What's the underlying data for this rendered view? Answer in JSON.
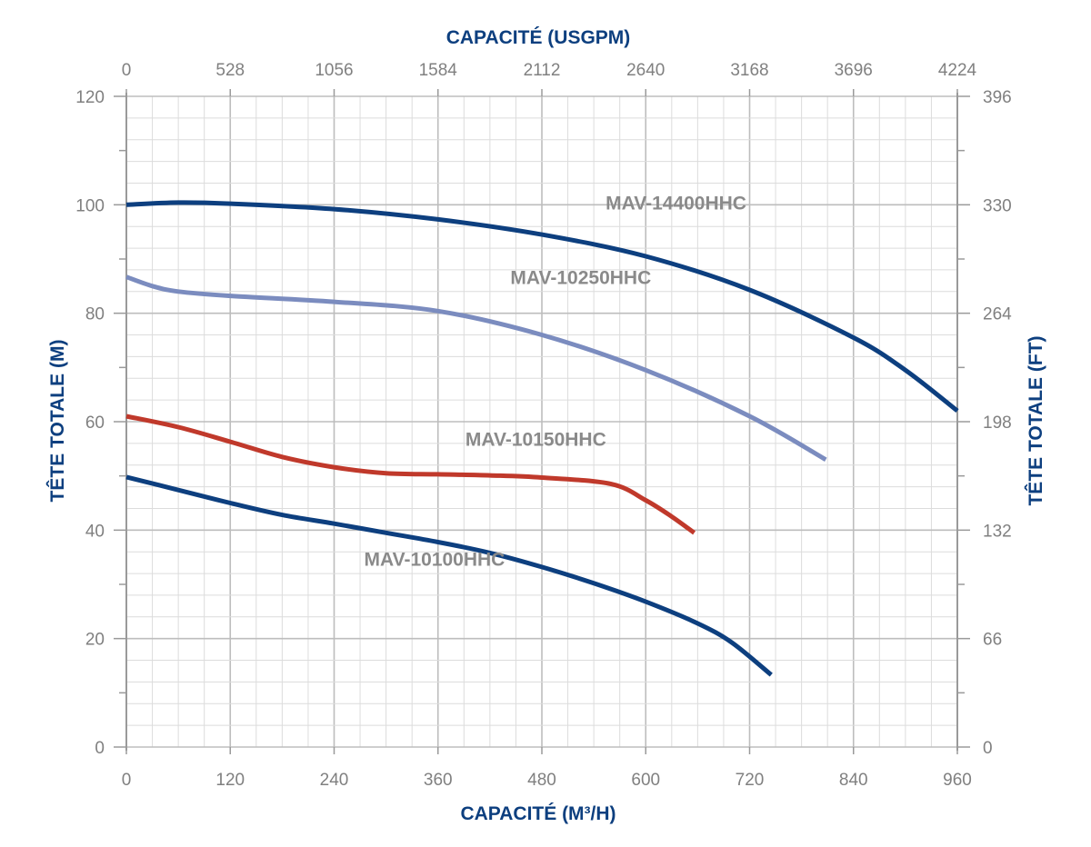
{
  "chart_data": {
    "type": "line",
    "title": "",
    "x_bottom": {
      "label": "CAPACITÉ (M³/H)",
      "range": [
        0,
        960
      ],
      "ticks": [
        "0",
        "120",
        "240",
        "360",
        "480",
        "600",
        "720",
        "840",
        "960"
      ]
    },
    "x_top": {
      "label": "CAPACITÉ (USGPM)",
      "range": [
        0,
        4224
      ],
      "ticks": [
        "0",
        "528",
        "1056",
        "1584",
        "2112",
        "2640",
        "3168",
        "3696",
        "4224"
      ]
    },
    "y_left": {
      "label": "TÊTE TOTALE (M)",
      "range": [
        0,
        120
      ],
      "ticks": [
        "0",
        "20",
        "40",
        "60",
        "80",
        "100",
        "120"
      ]
    },
    "y_right": {
      "label": "TÊTE TOTALE (FT)",
      "range": [
        0,
        396
      ],
      "ticks": [
        "0",
        "66",
        "132",
        "198",
        "264",
        "330",
        "396"
      ]
    },
    "grid": true,
    "series": [
      {
        "name": "MAV-14400HHC",
        "color": "#0d3f7f",
        "points": [
          [
            0,
            100
          ],
          [
            60,
            100.4
          ],
          [
            120,
            100.2
          ],
          [
            240,
            99.2
          ],
          [
            360,
            97.3
          ],
          [
            480,
            94.5
          ],
          [
            600,
            90.5
          ],
          [
            720,
            84.3
          ],
          [
            840,
            75.5
          ],
          [
            900,
            69.5
          ],
          [
            960,
            62
          ]
        ]
      },
      {
        "name": "MAV-10250HHC",
        "color": "#7b8cbf",
        "points": [
          [
            0,
            86.7
          ],
          [
            30,
            85
          ],
          [
            60,
            84
          ],
          [
            120,
            83.2
          ],
          [
            240,
            82.1
          ],
          [
            360,
            80.4
          ],
          [
            480,
            76
          ],
          [
            600,
            69.5
          ],
          [
            720,
            61
          ],
          [
            808,
            53
          ]
        ]
      },
      {
        "name": "MAV-10150HHC",
        "color": "#c0392b",
        "points": [
          [
            0,
            61
          ],
          [
            60,
            59
          ],
          [
            120,
            56.3
          ],
          [
            180,
            53.5
          ],
          [
            240,
            51.6
          ],
          [
            300,
            50.5
          ],
          [
            360,
            50.3
          ],
          [
            420,
            50.1
          ],
          [
            480,
            49.7
          ],
          [
            560,
            48.5
          ],
          [
            600,
            45.5
          ],
          [
            630,
            42.5
          ],
          [
            656,
            39.5
          ]
        ]
      },
      {
        "name": "MAV-10100HHC",
        "color": "#0d3f7f",
        "points": [
          [
            0,
            49.8
          ],
          [
            60,
            47.4
          ],
          [
            120,
            45
          ],
          [
            180,
            42.8
          ],
          [
            240,
            41.2
          ],
          [
            300,
            39.5
          ],
          [
            360,
            37.8
          ],
          [
            420,
            35.8
          ],
          [
            480,
            33.2
          ],
          [
            540,
            30.2
          ],
          [
            600,
            26.8
          ],
          [
            660,
            22.8
          ],
          [
            700,
            19.2
          ],
          [
            745,
            13.3
          ]
        ]
      }
    ],
    "annotations": [
      {
        "text": "MAV-14400HHC",
        "x": 635,
        "y": 100.3
      },
      {
        "text": "MAV-10250HHC",
        "x": 525,
        "y": 86.6
      },
      {
        "text": "MAV-10150HHC",
        "x": 473,
        "y": 56.7
      },
      {
        "text": "MAV-10100HHC",
        "x": 356,
        "y": 34.6
      }
    ]
  }
}
